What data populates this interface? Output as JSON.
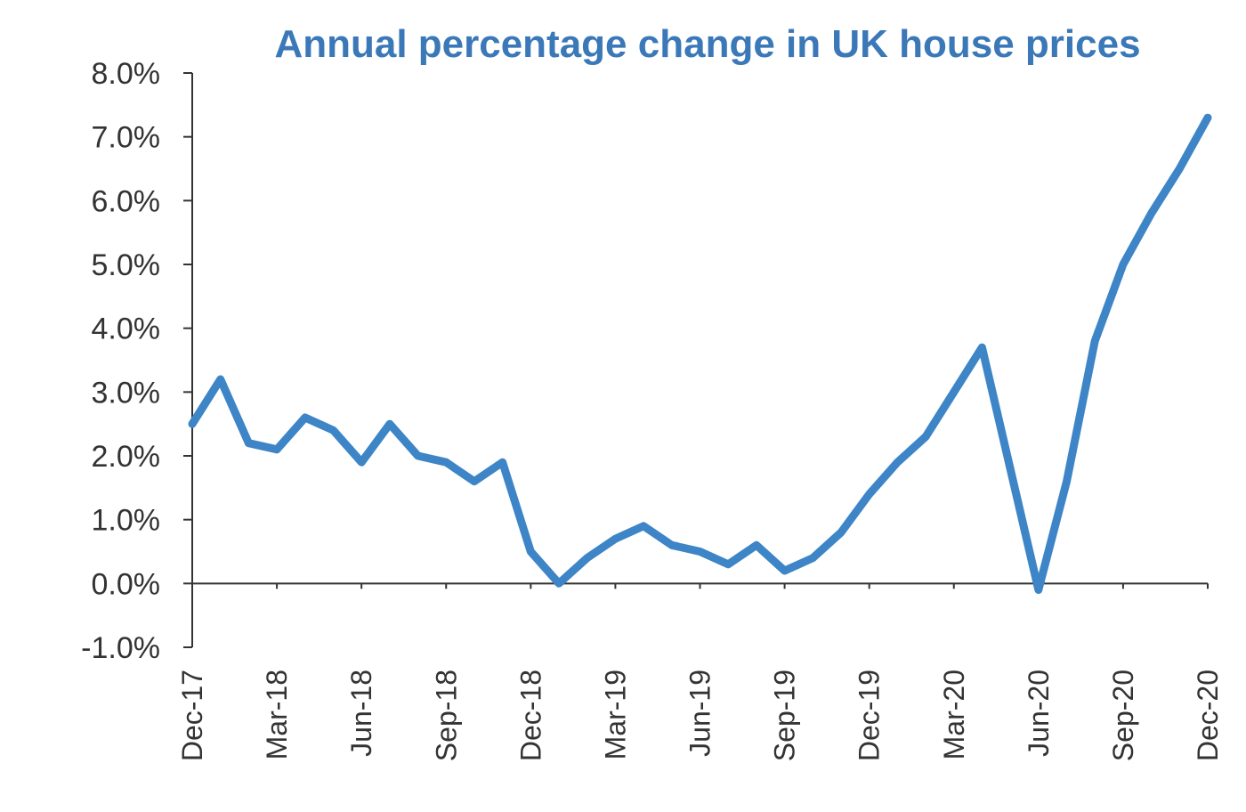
{
  "chart_data": {
    "type": "line",
    "title": "Annual percentage change in UK house prices",
    "xlabel": "",
    "ylabel": "",
    "ylim": [
      -1.0,
      8.0
    ],
    "y_ticks": [
      "8.0%",
      "7.0%",
      "6.0%",
      "5.0%",
      "4.0%",
      "3.0%",
      "2.0%",
      "1.0%",
      "0.0%",
      "-1.0%"
    ],
    "y_tick_values": [
      8,
      7,
      6,
      5,
      4,
      3,
      2,
      1,
      0,
      -1
    ],
    "x_tick_labels": [
      "Dec-17",
      "Mar-18",
      "Jun-18",
      "Sep-18",
      "Dec-18",
      "Mar-19",
      "Jun-19",
      "Sep-19",
      "Dec-19",
      "Mar-20",
      "Jun-20",
      "Sep-20",
      "Dec-20"
    ],
    "x_tick_index": [
      0,
      3,
      6,
      9,
      12,
      15,
      18,
      21,
      24,
      27,
      30,
      33,
      36
    ],
    "x": [
      "Dec-17",
      "Jan-18",
      "Feb-18",
      "Mar-18",
      "Apr-18",
      "May-18",
      "Jun-18",
      "Jul-18",
      "Aug-18",
      "Sep-18",
      "Oct-18",
      "Nov-18",
      "Dec-18",
      "Jan-19",
      "Feb-19",
      "Mar-19",
      "Apr-19",
      "May-19",
      "Jun-19",
      "Jul-19",
      "Aug-19",
      "Sep-19",
      "Oct-19",
      "Nov-19",
      "Dec-19",
      "Jan-20",
      "Feb-20",
      "Mar-20",
      "Apr-20",
      "May-20",
      "Jun-20",
      "Jul-20",
      "Aug-20",
      "Sep-20",
      "Oct-20",
      "Nov-20",
      "Dec-20"
    ],
    "series": [
      {
        "color": "#3d85c6",
        "values": [
          2.5,
          3.2,
          2.2,
          2.1,
          2.6,
          2.4,
          1.9,
          2.5,
          2.0,
          1.9,
          1.6,
          1.9,
          0.5,
          0.0,
          0.4,
          0.7,
          0.9,
          0.6,
          0.5,
          0.3,
          0.6,
          0.2,
          0.4,
          0.8,
          1.4,
          1.9,
          2.3,
          3.0,
          3.7,
          1.8,
          -0.1,
          1.6,
          3.8,
          5.0,
          5.8,
          6.5,
          7.3
        ]
      }
    ],
    "grid": false,
    "zero_line": true
  }
}
